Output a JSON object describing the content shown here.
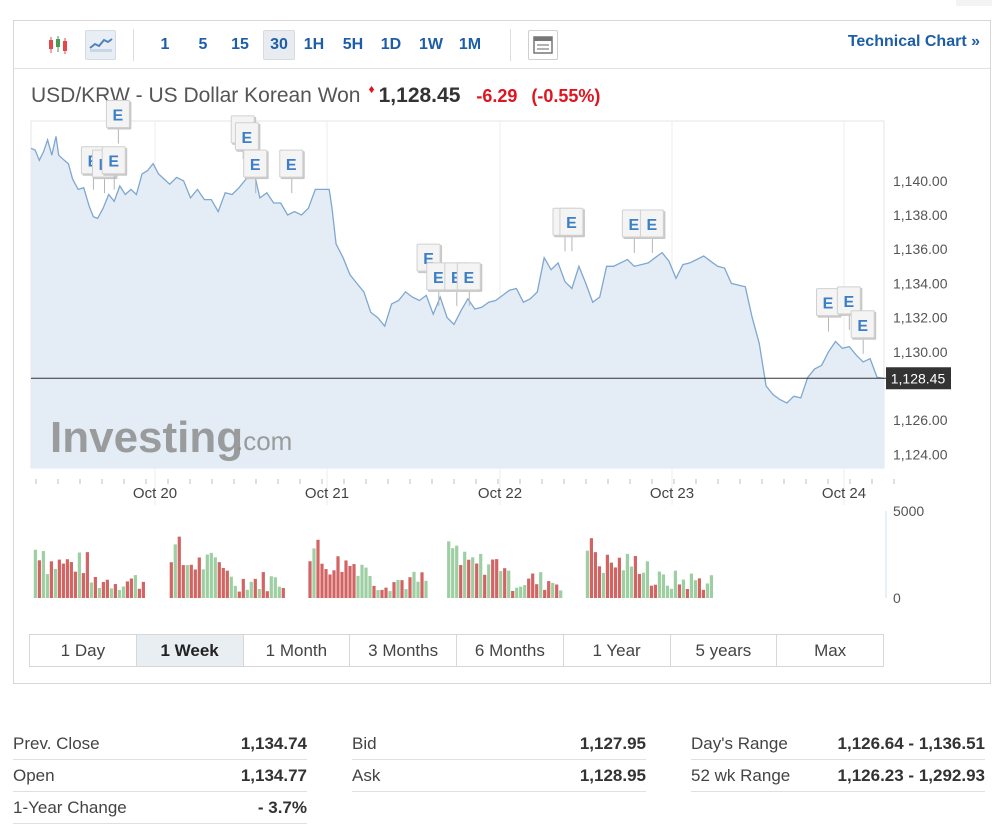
{
  "toolbar": {
    "intervals": [
      "1",
      "5",
      "15",
      "30",
      "1H",
      "5H",
      "1D",
      "1W",
      "1M"
    ],
    "active_interval": "30",
    "technical_chart_label": "Technical Chart »"
  },
  "quote": {
    "name": "USD/KRW - US Dollar Korean Won",
    "price": "1,128.45",
    "change": "-6.29",
    "change_pct": "(-0.55%)",
    "direction_color": "#e0141e"
  },
  "watermark": {
    "brand": "Investing",
    "suffix": ".com"
  },
  "chart_data": {
    "type": "area",
    "x_labels": [
      "Oct 20",
      "Oct 21",
      "Oct 22",
      "Oct 23",
      "Oct 24"
    ],
    "y_ticks": [
      "1,140.00",
      "1,138.00",
      "1,136.00",
      "1,134.00",
      "1,132.00",
      "1,130.00",
      "1,126.00",
      "1,124.00"
    ],
    "ylim": [
      1123.2,
      1143.5
    ],
    "current_price_label": "1,128.45",
    "current_price": 1128.45,
    "line_color": "#7fa7cf",
    "fill_color": "#e4edf6",
    "price_series": [
      [
        0.0,
        1141.9
      ],
      [
        0.03,
        1141.8
      ],
      [
        0.06,
        1141.2
      ],
      [
        0.09,
        1141.7
      ],
      [
        0.12,
        1142.4
      ],
      [
        0.15,
        1141.5
      ],
      [
        0.18,
        1142.6
      ],
      [
        0.2,
        1141.5
      ],
      [
        0.24,
        1141.2
      ],
      [
        0.27,
        1141.0
      ],
      [
        0.3,
        1140.1
      ],
      [
        0.34,
        1139.5
      ],
      [
        0.38,
        1139.6
      ],
      [
        0.42,
        1138.5
      ],
      [
        0.45,
        1137.9
      ],
      [
        0.48,
        1137.8
      ],
      [
        0.52,
        1138.4
      ],
      [
        0.56,
        1139.2
      ],
      [
        0.6,
        1138.8
      ],
      [
        0.64,
        1139.7
      ],
      [
        0.68,
        1139.2
      ],
      [
        0.72,
        1139.5
      ],
      [
        0.76,
        1139.2
      ],
      [
        0.8,
        1140.4
      ],
      [
        0.84,
        1140.6
      ],
      [
        0.88,
        1141.0
      ],
      [
        0.92,
        1140.4
      ],
      [
        0.96,
        1140.1
      ],
      [
        1.0,
        1139.8
      ],
      [
        1.05,
        1140.2
      ],
      [
        1.1,
        1140.0
      ],
      [
        1.15,
        1139.0
      ],
      [
        1.2,
        1139.5
      ],
      [
        1.25,
        1138.9
      ],
      [
        1.3,
        1138.9
      ],
      [
        1.35,
        1138.2
      ],
      [
        1.4,
        1139.3
      ],
      [
        1.45,
        1139.2
      ],
      [
        1.5,
        1139.6
      ],
      [
        1.55,
        1140.1
      ],
      [
        1.6,
        1140.8
      ],
      [
        1.65,
        1139.0
      ],
      [
        1.7,
        1139.3
      ],
      [
        1.75,
        1138.7
      ],
      [
        1.8,
        1138.7
      ],
      [
        1.85,
        1138.0
      ],
      [
        1.9,
        1138.2
      ],
      [
        1.95,
        1138.0
      ],
      [
        2.0,
        1138.4
      ],
      [
        2.05,
        1139.5
      ],
      [
        2.1,
        1139.5
      ],
      [
        2.15,
        1139.5
      ],
      [
        2.17,
        1138.4
      ],
      [
        2.2,
        1136.3
      ],
      [
        2.25,
        1135.5
      ],
      [
        2.3,
        1134.5
      ],
      [
        2.35,
        1134.0
      ],
      [
        2.4,
        1133.5
      ],
      [
        2.45,
        1132.3
      ],
      [
        2.5,
        1132.0
      ],
      [
        2.55,
        1131.5
      ],
      [
        2.6,
        1132.8
      ],
      [
        2.65,
        1133.0
      ],
      [
        2.7,
        1133.5
      ],
      [
        2.75,
        1133.2
      ],
      [
        2.8,
        1133.0
      ],
      [
        2.85,
        1133.3
      ],
      [
        2.9,
        1132.2
      ],
      [
        2.95,
        1133.2
      ],
      [
        3.0,
        1132.0
      ],
      [
        3.05,
        1131.6
      ],
      [
        3.1,
        1132.4
      ],
      [
        3.15,
        1133.1
      ],
      [
        3.2,
        1132.5
      ],
      [
        3.25,
        1132.6
      ],
      [
        3.3,
        1132.9
      ],
      [
        3.35,
        1133.0
      ],
      [
        3.4,
        1133.3
      ],
      [
        3.45,
        1133.6
      ],
      [
        3.5,
        1133.7
      ],
      [
        3.55,
        1132.9
      ],
      [
        3.6,
        1133.1
      ],
      [
        3.65,
        1133.5
      ],
      [
        3.7,
        1135.5
      ],
      [
        3.75,
        1134.8
      ],
      [
        3.8,
        1135.2
      ],
      [
        3.85,
        1134.1
      ],
      [
        3.9,
        1133.7
      ],
      [
        3.95,
        1135.0
      ],
      [
        4.0,
        1134.0
      ],
      [
        4.05,
        1132.9
      ],
      [
        4.1,
        1133.2
      ],
      [
        4.15,
        1135.0
      ],
      [
        4.2,
        1135.0
      ],
      [
        4.25,
        1135.2
      ],
      [
        4.3,
        1135.4
      ],
      [
        4.35,
        1135.0
      ],
      [
        4.4,
        1135.1
      ],
      [
        4.45,
        1135.2
      ],
      [
        4.5,
        1135.5
      ],
      [
        4.55,
        1135.8
      ],
      [
        4.6,
        1135.3
      ],
      [
        4.65,
        1134.3
      ],
      [
        4.7,
        1135.1
      ],
      [
        4.75,
        1135.2
      ],
      [
        4.8,
        1135.4
      ],
      [
        4.85,
        1135.6
      ],
      [
        4.9,
        1135.3
      ],
      [
        4.95,
        1135.0
      ],
      [
        5.0,
        1134.9
      ],
      [
        5.05,
        1134.0
      ],
      [
        5.1,
        1133.9
      ],
      [
        5.15,
        1133.8
      ],
      [
        5.2,
        1132.0
      ],
      [
        5.25,
        1130.5
      ],
      [
        5.3,
        1128.0
      ],
      [
        5.35,
        1127.5
      ],
      [
        5.4,
        1127.2
      ],
      [
        5.45,
        1127.0
      ],
      [
        5.5,
        1127.4
      ],
      [
        5.55,
        1127.3
      ],
      [
        5.6,
        1128.5
      ],
      [
        5.65,
        1129.0
      ],
      [
        5.7,
        1129.2
      ],
      [
        5.75,
        1130.0
      ],
      [
        5.8,
        1130.6
      ],
      [
        5.85,
        1130.2
      ],
      [
        5.9,
        1130.3
      ],
      [
        5.95,
        1129.8
      ],
      [
        6.0,
        1129.4
      ],
      [
        6.05,
        1129.6
      ],
      [
        6.1,
        1128.5
      ],
      [
        6.15,
        1128.45
      ]
    ],
    "volume_ticks": [
      "5000",
      "0"
    ],
    "volume_range": [
      0,
      5000
    ],
    "volume_groups": [
      [
        0.02,
        0.85
      ],
      [
        1.0,
        1.85
      ],
      [
        2.0,
        2.87
      ],
      [
        3.0,
        3.86
      ],
      [
        4.0,
        4.95
      ]
    ],
    "volume_colors": {
      "up": "#9ecfa3",
      "down": "#d26464"
    },
    "events": [
      {
        "label": "E",
        "x": 0.45,
        "y": 1140.3
      },
      {
        "label": "E",
        "x": 0.53,
        "y": 1140.1
      },
      {
        "label": "E",
        "x": 0.6,
        "y": 1140.3
      },
      {
        "label": "E",
        "x": 0.63,
        "y": 1143.0
      },
      {
        "label": "E",
        "x": 1.53,
        "y": 1142.1
      },
      {
        "label": "E",
        "x": 1.56,
        "y": 1141.7
      },
      {
        "label": "E",
        "x": 1.62,
        "y": 1140.1
      },
      {
        "label": "E",
        "x": 1.88,
        "y": 1140.1
      },
      {
        "label": "E",
        "x": 2.87,
        "y": 1134.6
      },
      {
        "label": "E",
        "x": 2.94,
        "y": 1133.5
      },
      {
        "label": "E",
        "x": 3.07,
        "y": 1133.5
      },
      {
        "label": "E",
        "x": 3.16,
        "y": 1133.5
      },
      {
        "label": "E",
        "x": 3.85,
        "y": 1136.7
      },
      {
        "label": "E",
        "x": 3.9,
        "y": 1136.7
      },
      {
        "label": "E",
        "x": 4.35,
        "y": 1136.6
      },
      {
        "label": "E",
        "x": 4.48,
        "y": 1136.6
      },
      {
        "label": "E",
        "x": 5.75,
        "y": 1132.0
      },
      {
        "label": "E",
        "x": 5.9,
        "y": 1132.1
      },
      {
        "label": "E",
        "x": 6.0,
        "y": 1130.7
      }
    ]
  },
  "ranges": {
    "items": [
      "1 Day",
      "1 Week",
      "1 Month",
      "3 Months",
      "6 Months",
      "1 Year",
      "5 years",
      "Max"
    ],
    "active": "1 Week"
  },
  "stats": {
    "col1": [
      {
        "label": "Prev. Close",
        "value": "1,134.74"
      },
      {
        "label": "Open",
        "value": "1,134.77"
      },
      {
        "label": "1-Year Change",
        "value": "- 3.7%"
      }
    ],
    "col2": [
      {
        "label": "Bid",
        "value": "1,127.95"
      },
      {
        "label": "Ask",
        "value": "1,128.95"
      }
    ],
    "col3": [
      {
        "label": "Day's Range",
        "value": "1,126.64 - 1,136.51"
      },
      {
        "label": "52 wk Range",
        "value": "1,126.23 - 1,292.93"
      }
    ]
  }
}
